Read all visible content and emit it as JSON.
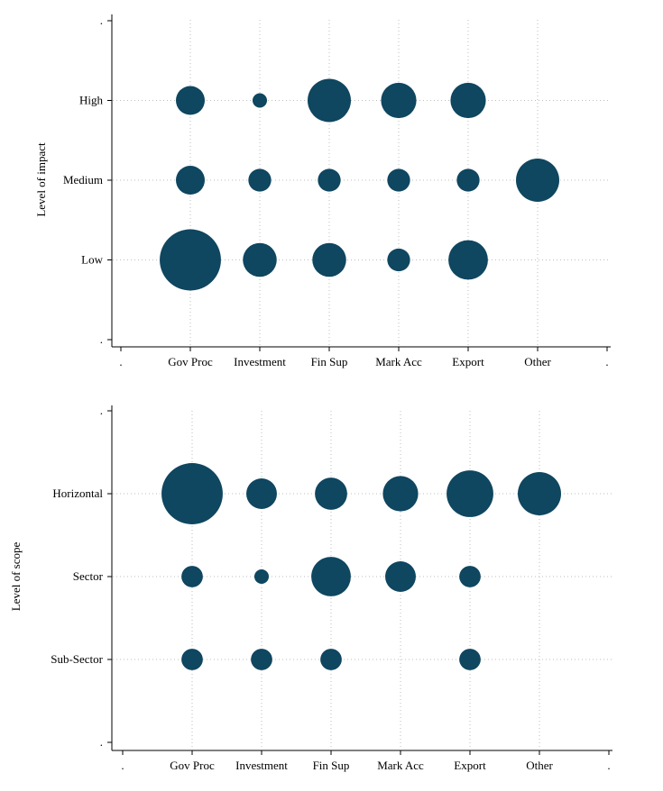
{
  "colors": {
    "bubble": "#0f4660",
    "axis": "#000000",
    "grid": "#bdbdbd"
  },
  "chart_data": [
    {
      "type": "scatter",
      "subtype": "bubble",
      "title": "",
      "xlabel": "",
      "ylabel": "Level of impact",
      "x_tick_labels": [
        ".",
        "Gov Proc",
        "Investment",
        "Fin Sup",
        "Mark Acc",
        "Export",
        "Other",
        "."
      ],
      "y_tick_labels": [
        ".",
        "Low",
        "Medium",
        "High",
        "."
      ],
      "xlim": [
        0,
        7
      ],
      "ylim": [
        0,
        4
      ],
      "grid": true,
      "points": [
        {
          "x": 1,
          "y": 3,
          "size": 4
        },
        {
          "x": 2,
          "y": 3,
          "size": 1
        },
        {
          "x": 3,
          "y": 3,
          "size": 9
        },
        {
          "x": 4,
          "y": 3,
          "size": 6
        },
        {
          "x": 5,
          "y": 3,
          "size": 6
        },
        {
          "x": 1,
          "y": 2,
          "size": 4
        },
        {
          "x": 2,
          "y": 2,
          "size": 2.5
        },
        {
          "x": 3,
          "y": 2,
          "size": 2.5
        },
        {
          "x": 4,
          "y": 2,
          "size": 2.5
        },
        {
          "x": 5,
          "y": 2,
          "size": 2.5
        },
        {
          "x": 6,
          "y": 2,
          "size": 9
        },
        {
          "x": 1,
          "y": 1,
          "size": 18
        },
        {
          "x": 2,
          "y": 1,
          "size": 5.5
        },
        {
          "x": 3,
          "y": 1,
          "size": 5.5
        },
        {
          "x": 4,
          "y": 1,
          "size": 2.5
        },
        {
          "x": 5,
          "y": 1,
          "size": 7.5
        }
      ]
    },
    {
      "type": "scatter",
      "subtype": "bubble",
      "title": "",
      "xlabel": "",
      "ylabel": "Level of scope",
      "x_tick_labels": [
        ".",
        "Gov Proc",
        "Investment",
        "Fin Sup",
        "Mark Acc",
        "Export",
        "Other",
        "."
      ],
      "y_tick_labels": [
        ".",
        "Sub-Sector",
        "Sector",
        "Horizontal",
        "."
      ],
      "xlim": [
        0,
        7
      ],
      "ylim": [
        0,
        4
      ],
      "grid": true,
      "points": [
        {
          "x": 1,
          "y": 3,
          "size": 18
        },
        {
          "x": 2,
          "y": 3,
          "size": 4.5
        },
        {
          "x": 3,
          "y": 3,
          "size": 5
        },
        {
          "x": 4,
          "y": 3,
          "size": 6
        },
        {
          "x": 5,
          "y": 3,
          "size": 10.5
        },
        {
          "x": 6,
          "y": 3,
          "size": 9
        },
        {
          "x": 1,
          "y": 2,
          "size": 2.2
        },
        {
          "x": 2,
          "y": 2,
          "size": 1
        },
        {
          "x": 3,
          "y": 2,
          "size": 7.5
        },
        {
          "x": 4,
          "y": 2,
          "size": 4.5
        },
        {
          "x": 5,
          "y": 2,
          "size": 2.2
        },
        {
          "x": 1,
          "y": 1,
          "size": 2.2
        },
        {
          "x": 2,
          "y": 1,
          "size": 2.2
        },
        {
          "x": 3,
          "y": 1,
          "size": 2.2
        },
        {
          "x": 5,
          "y": 1,
          "size": 2.2
        }
      ]
    }
  ]
}
